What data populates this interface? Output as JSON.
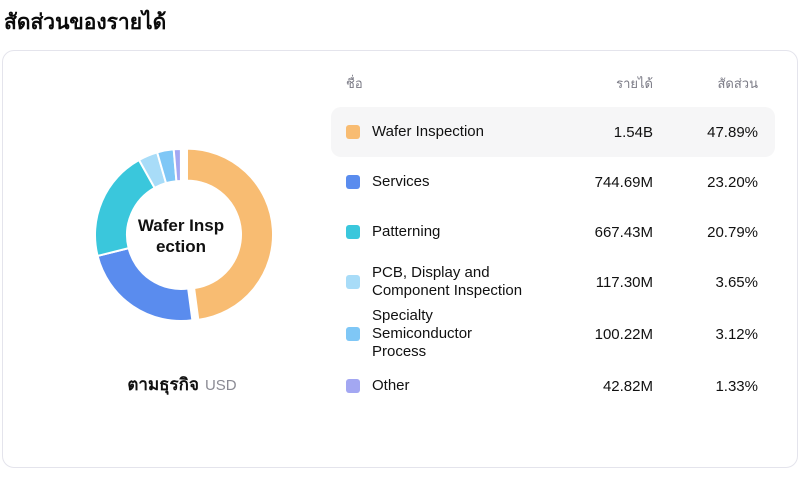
{
  "page": {
    "title": "สัดส่วนของรายได้"
  },
  "chart": {
    "center_label_lines": [
      "Wafer Insp",
      "ection"
    ],
    "caption": "ตามธุรกิจ",
    "caption_unit": "USD"
  },
  "table": {
    "headers": {
      "name": "ชื่อ",
      "revenue": "รายได้",
      "share": "สัดส่วน"
    },
    "rows": [
      {
        "name": "Wafer Inspection",
        "revenue": "1.54B",
        "share": "47.89%",
        "color": "#F8BC72",
        "highlighted": true
      },
      {
        "name": "Services",
        "revenue": "744.69M",
        "share": "23.20%",
        "color": "#5A8CEE",
        "highlighted": false
      },
      {
        "name": "Patterning",
        "revenue": "667.43M",
        "share": "20.79%",
        "color": "#3AC7DC",
        "highlighted": false
      },
      {
        "name": "PCB, Display and Component Inspection",
        "revenue": "117.30M",
        "share": "3.65%",
        "color": "#A8DCF8",
        "highlighted": false
      },
      {
        "name": "Specialty Semiconductor Process",
        "revenue": "100.22M",
        "share": "3.12%",
        "color": "#7FC7F6",
        "highlighted": false
      },
      {
        "name": "Other",
        "revenue": "42.82M",
        "share": "1.33%",
        "color": "#A3A7F2",
        "highlighted": false
      }
    ]
  },
  "chart_data": {
    "type": "pie",
    "donut": true,
    "title": "สัดส่วนของรายได้",
    "grouping": "ตามธุรกิจ",
    "unit": "USD",
    "center_label": "Wafer Inspection",
    "segments": [
      {
        "label": "Wafer Inspection",
        "revenue": "1.54B",
        "value_pct": 47.89,
        "color": "#F8BC72",
        "exploded": true
      },
      {
        "label": "Services",
        "revenue": "744.69M",
        "value_pct": 23.2,
        "color": "#5A8CEE",
        "exploded": false
      },
      {
        "label": "Patterning",
        "revenue": "667.43M",
        "value_pct": 20.79,
        "color": "#3AC7DC",
        "exploded": false
      },
      {
        "label": "PCB, Display and Component Inspection",
        "revenue": "117.30M",
        "value_pct": 3.65,
        "color": "#A8DCF8",
        "exploded": false
      },
      {
        "label": "Specialty Semiconductor Process",
        "revenue": "100.22M",
        "value_pct": 3.12,
        "color": "#7FC7F6",
        "exploded": false
      },
      {
        "label": "Other",
        "revenue": "42.82M",
        "value_pct": 1.33,
        "color": "#A3A7F2",
        "exploded": false
      }
    ]
  }
}
